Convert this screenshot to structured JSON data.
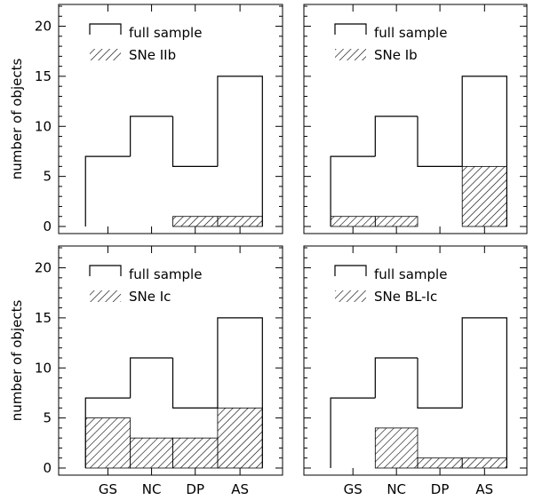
{
  "chart_data": [
    {
      "type": "bar",
      "categories": [
        "GS",
        "NC",
        "DP",
        "AS"
      ],
      "ylabel": "number of objects",
      "ylim": [
        0,
        22
      ],
      "yticks": [
        "0",
        "5",
        "10",
        "15",
        "20"
      ],
      "show_x_ticklabels": false,
      "legend_position": "top-left",
      "series": [
        {
          "name": "full sample",
          "style": "outline",
          "values": [
            7,
            11,
            6,
            15
          ]
        },
        {
          "name": "SNe IIb",
          "style": "hatched",
          "values": [
            0,
            0,
            1,
            1
          ]
        }
      ]
    },
    {
      "type": "bar",
      "categories": [
        "GS",
        "NC",
        "DP",
        "AS"
      ],
      "ylabel": "",
      "ylim": [
        0,
        22
      ],
      "yticks": [],
      "show_x_ticklabels": false,
      "legend_position": "top-left",
      "series": [
        {
          "name": "full sample",
          "style": "outline",
          "values": [
            7,
            11,
            6,
            15
          ]
        },
        {
          "name": "SNe Ib",
          "style": "hatched",
          "values": [
            1,
            1,
            0,
            6
          ]
        }
      ]
    },
    {
      "type": "bar",
      "categories": [
        "GS",
        "NC",
        "DP",
        "AS"
      ],
      "ylabel": "number of objects",
      "ylim": [
        0,
        22
      ],
      "yticks": [
        "0",
        "5",
        "10",
        "15",
        "20"
      ],
      "show_x_ticklabels": true,
      "legend_position": "top-left",
      "series": [
        {
          "name": "full sample",
          "style": "outline",
          "values": [
            7,
            11,
            6,
            15
          ]
        },
        {
          "name": "SNe Ic",
          "style": "hatched",
          "values": [
            5,
            3,
            3,
            6
          ]
        }
      ]
    },
    {
      "type": "bar",
      "categories": [
        "GS",
        "NC",
        "DP",
        "AS"
      ],
      "ylabel": "",
      "ylim": [
        0,
        22
      ],
      "yticks": [],
      "show_x_ticklabels": true,
      "legend_position": "top-left",
      "series": [
        {
          "name": "full sample",
          "style": "outline",
          "values": [
            7,
            11,
            6,
            15
          ]
        },
        {
          "name": "SNe BL-Ic",
          "style": "hatched",
          "values": [
            0,
            4,
            1,
            1
          ]
        }
      ]
    }
  ]
}
